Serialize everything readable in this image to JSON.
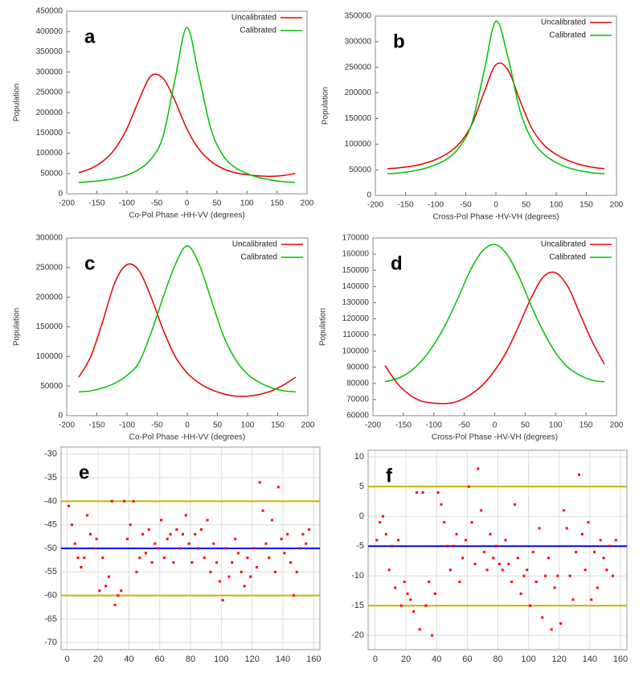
{
  "chart_data": [
    {
      "type": "line",
      "label": "a",
      "xlabel": "Co-Pol Phase -HH-VV (degrees)",
      "ylabel": "Population",
      "x": [
        -180,
        -160,
        -140,
        -120,
        -100,
        -80,
        -60,
        -40,
        -20,
        0,
        20,
        40,
        60,
        80,
        100,
        120,
        140,
        160,
        180
      ],
      "series": [
        {
          "name": "Uncalibrated",
          "color": "#e00000",
          "values": [
            52000,
            62000,
            80000,
            110000,
            160000,
            230000,
            290000,
            285000,
            230000,
            160000,
            110000,
            80000,
            62000,
            52000,
            47000,
            44000,
            43000,
            45000,
            50000
          ]
        },
        {
          "name": "Calibrated",
          "color": "#00c000",
          "values": [
            28000,
            30000,
            33000,
            38000,
            46000,
            60000,
            85000,
            140000,
            280000,
            410000,
            290000,
            160000,
            95000,
            65000,
            50000,
            40000,
            34000,
            30000,
            28000
          ]
        }
      ],
      "xlim": [
        -200,
        200
      ],
      "xticks": [
        -200,
        -150,
        -100,
        -50,
        0,
        50,
        100,
        150,
        200
      ],
      "ylim": [
        0,
        450000
      ],
      "yticks": [
        0,
        50000,
        100000,
        150000,
        200000,
        250000,
        300000,
        350000,
        400000,
        450000
      ],
      "grid": false,
      "legend": "upper right"
    },
    {
      "type": "line",
      "label": "b",
      "xlabel": "Cross-Pol Phase -HV-VH (degrees)",
      "ylabel": "Population",
      "x": [
        -180,
        -160,
        -140,
        -120,
        -100,
        -80,
        -60,
        -40,
        -20,
        0,
        20,
        40,
        60,
        80,
        100,
        120,
        140,
        160,
        180
      ],
      "series": [
        {
          "name": "Uncalibrated",
          "color": "#e00000",
          "values": [
            52000,
            54000,
            57000,
            62000,
            70000,
            82000,
            102000,
            138000,
            200000,
            255000,
            245000,
            185000,
            130000,
            98000,
            80000,
            68000,
            60000,
            55000,
            52000
          ]
        },
        {
          "name": "Calibrated",
          "color": "#00c000",
          "values": [
            42000,
            44000,
            47000,
            52000,
            60000,
            72000,
            95000,
            140000,
            240000,
            340000,
            270000,
            165000,
            108000,
            80000,
            64000,
            54000,
            48000,
            44000,
            42000
          ]
        }
      ],
      "xlim": [
        -200,
        200
      ],
      "xticks": [
        -200,
        -150,
        -100,
        -50,
        0,
        50,
        100,
        150,
        200
      ],
      "ylim": [
        0,
        350000
      ],
      "yticks": [
        0,
        50000,
        100000,
        150000,
        200000,
        250000,
        300000,
        350000
      ],
      "grid": false,
      "legend": "upper right"
    },
    {
      "type": "line",
      "label": "c",
      "xlabel": "Co-Pol Phase -HH-VV (degrees)",
      "ylabel": "Population",
      "x": [
        -180,
        -160,
        -140,
        -120,
        -100,
        -80,
        -60,
        -40,
        -20,
        0,
        20,
        40,
        60,
        80,
        100,
        120,
        140,
        160,
        180
      ],
      "series": [
        {
          "name": "Uncalibrated",
          "color": "#e00000",
          "values": [
            65000,
            100000,
            160000,
            225000,
            255000,
            245000,
            200000,
            145000,
            100000,
            72000,
            55000,
            44000,
            37000,
            33000,
            33000,
            36000,
            42000,
            52000,
            65000
          ]
        },
        {
          "name": "Calibrated",
          "color": "#00c000",
          "values": [
            40000,
            42000,
            47000,
            55000,
            68000,
            90000,
            140000,
            200000,
            255000,
            287000,
            255000,
            195000,
            135000,
            95000,
            70000,
            56000,
            47000,
            42000,
            40000
          ]
        }
      ],
      "xlim": [
        -200,
        200
      ],
      "xticks": [
        -200,
        -150,
        -100,
        -50,
        0,
        50,
        100,
        150,
        200
      ],
      "ylim": [
        0,
        300000
      ],
      "yticks": [
        0,
        50000,
        100000,
        150000,
        200000,
        250000,
        300000
      ],
      "grid": false,
      "legend": "upper right"
    },
    {
      "type": "line",
      "label": "d",
      "xlabel": "Cross-Pol Phase -HV-VH (degrees)",
      "ylabel": "Population",
      "x": [
        -180,
        -160,
        -140,
        -120,
        -100,
        -80,
        -60,
        -40,
        -20,
        0,
        20,
        40,
        60,
        80,
        100,
        120,
        140,
        160,
        180
      ],
      "series": [
        {
          "name": "Uncalibrated",
          "color": "#e00000",
          "values": [
            91000,
            80000,
            73000,
            69000,
            67800,
            67500,
            69000,
            73000,
            79000,
            88000,
            100000,
            116000,
            133000,
            146000,
            148500,
            140000,
            123000,
            106000,
            92000
          ]
        },
        {
          "name": "Calibrated",
          "color": "#00c000",
          "values": [
            81000,
            83000,
            87000,
            94000,
            104000,
            117000,
            133000,
            150000,
            162000,
            166000,
            160000,
            146000,
            128000,
            112000,
            99000,
            90000,
            85000,
            82000,
            81000
          ]
        }
      ],
      "xlim": [
        -200,
        200
      ],
      "xticks": [
        -200,
        -150,
        -100,
        -50,
        0,
        50,
        100,
        150,
        200
      ],
      "ylim": [
        60000,
        170000
      ],
      "yticks": [
        60000,
        70000,
        80000,
        90000,
        100000,
        110000,
        120000,
        130000,
        140000,
        150000,
        160000,
        170000
      ],
      "grid": false,
      "legend": "upper right"
    },
    {
      "type": "scatter",
      "label": "e",
      "color": "#ff0000",
      "x": [
        1,
        3,
        5,
        7,
        9,
        11,
        13,
        15,
        17,
        19,
        21,
        23,
        25,
        27,
        29,
        31,
        33,
        35,
        37,
        39,
        41,
        43,
        45,
        47,
        49,
        51,
        53,
        55,
        57,
        59,
        61,
        63,
        65,
        67,
        69,
        71,
        73,
        75,
        77,
        79,
        81,
        83,
        85,
        87,
        89,
        91,
        93,
        95,
        97,
        99,
        101,
        103,
        105,
        107,
        109,
        111,
        113,
        115,
        117,
        119,
        121,
        123,
        125,
        127,
        129,
        131,
        133,
        135,
        137,
        139,
        141,
        143,
        145,
        147,
        149,
        151,
        153,
        155,
        157
      ],
      "values": [
        -41,
        -45,
        -49,
        -52,
        -54,
        -52,
        -43,
        -47,
        -50,
        -48,
        -59,
        -52,
        -58,
        -56,
        -40,
        -62,
        -60,
        -59,
        -40,
        -48,
        -45,
        -40,
        -55,
        -52,
        -47,
        -51,
        -46,
        -53,
        -49,
        -50,
        -44,
        -52,
        -48,
        -47,
        -53,
        -46,
        -50,
        -47,
        -43,
        -49,
        -53,
        -47,
        -50,
        -46,
        -52,
        -44,
        -55,
        -49,
        -53,
        -57,
        -61,
        -50,
        -56,
        -53,
        -48,
        -51,
        -55,
        -58,
        -52,
        -56,
        -50,
        -54,
        -36,
        -42,
        -49,
        -52,
        -44,
        -55,
        -37,
        -48,
        -51,
        -47,
        -53,
        -60,
        -55,
        -50,
        -47,
        -49,
        -46
      ],
      "hlines": [
        {
          "value": -40,
          "color": "#c8b400"
        },
        {
          "value": -50,
          "color": "#0000ff"
        },
        {
          "value": -60,
          "color": "#c8b400"
        }
      ],
      "xlim": [
        -4,
        164
      ],
      "xticks": [
        0,
        20,
        40,
        60,
        80,
        100,
        120,
        140,
        160
      ],
      "ylim": [
        -71.5,
        -28.5
      ],
      "yticks": [
        -70,
        -65,
        -60,
        -55,
        -50,
        -45,
        -40,
        -35,
        -30
      ],
      "grid": true
    },
    {
      "type": "scatter",
      "label": "f",
      "color": "#ff0000",
      "x": [
        1,
        3,
        5,
        7,
        9,
        11,
        13,
        15,
        17,
        19,
        21,
        23,
        25,
        27,
        29,
        31,
        33,
        35,
        37,
        39,
        41,
        43,
        45,
        47,
        49,
        51,
        53,
        55,
        57,
        59,
        61,
        63,
        65,
        67,
        69,
        71,
        73,
        75,
        77,
        79,
        81,
        83,
        85,
        87,
        89,
        91,
        93,
        95,
        97,
        99,
        101,
        103,
        105,
        107,
        109,
        111,
        113,
        115,
        117,
        119,
        121,
        123,
        125,
        127,
        129,
        131,
        133,
        135,
        137,
        139,
        141,
        143,
        145,
        147,
        149,
        151,
        153,
        155,
        157
      ],
      "values": [
        -4,
        -1,
        0,
        -3,
        -9,
        -5,
        -12,
        -4,
        -15,
        -11,
        -13,
        -14,
        -16,
        4,
        -19,
        4,
        -15,
        -11,
        -20,
        -13,
        4,
        2,
        -1,
        -5,
        -9,
        -5,
        -3,
        -11,
        -7,
        -4,
        5,
        -1,
        -8,
        8,
        1,
        -6,
        -9,
        -3,
        -7,
        -5,
        -8,
        -9,
        -4,
        -8,
        -11,
        2,
        -7,
        -13,
        -10,
        -9,
        -15,
        -6,
        -11,
        -2,
        -17,
        -10,
        -7,
        -19,
        -12,
        -10,
        -18,
        1,
        -2,
        -10,
        -14,
        -6,
        7,
        -3,
        -9,
        -1,
        -14,
        -6,
        -12,
        -4,
        -7,
        -9,
        -5,
        -10,
        -4
      ],
      "hlines": [
        {
          "value": 5,
          "color": "#c8b400"
        },
        {
          "value": -5,
          "color": "#0000ff"
        },
        {
          "value": -15,
          "color": "#c8b400"
        }
      ],
      "xlim": [
        -4.7,
        164.2
      ],
      "xticks": [
        0,
        20,
        40,
        60,
        80,
        100,
        120,
        140,
        160
      ],
      "ylim": [
        -22.4,
        11.1
      ],
      "yticks": [
        -20,
        -15,
        -10,
        -5,
        0,
        5,
        10
      ],
      "grid": true
    }
  ]
}
